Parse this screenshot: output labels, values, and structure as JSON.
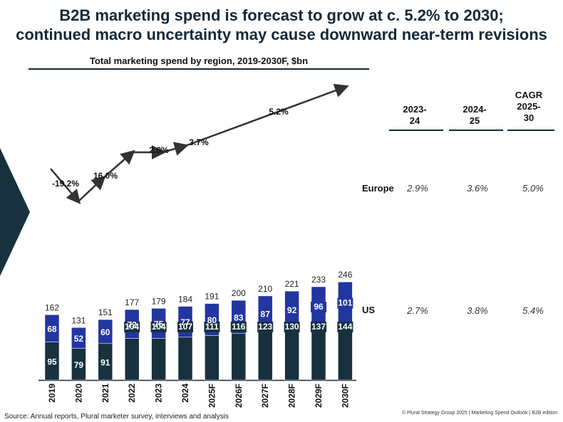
{
  "title_line1": "B2B marketing spend is forecast to grow at c. 5.2% to 2030;",
  "title_line2": "continued macro uncertainty may cause downward near-term revisions",
  "colors": {
    "us": "#17313f",
    "europe": "#2336a0",
    "arrow": "#333333",
    "rule": "#14283a"
  },
  "chart_data": {
    "type": "bar",
    "stacked": true,
    "title": "Total marketing spend by region, 2019-2030F, $bn",
    "categories": [
      "2019",
      "2020",
      "2021",
      "2022",
      "2023",
      "2024",
      "2025F",
      "2026F",
      "2027F",
      "2028F",
      "2029F",
      "2030F"
    ],
    "series": [
      {
        "name": "US",
        "values": [
          95,
          79,
          91,
          104,
          104,
          107,
          111,
          116,
          123,
          130,
          137,
          144
        ]
      },
      {
        "name": "Europe",
        "values": [
          68,
          52,
          60,
          72,
          75,
          77,
          80,
          83,
          87,
          92,
          96,
          101
        ]
      }
    ],
    "totals": [
      "162",
      "131",
      "151",
      "177",
      "179",
      "184",
      "191",
      "200",
      "210",
      "221",
      "233",
      "246"
    ],
    "growth_annotations": [
      "-19.2%",
      "16.0%",
      "2.0%",
      "3.7%",
      "5.2%"
    ]
  },
  "table": {
    "headers": [
      [
        "2023-",
        "24"
      ],
      [
        "2024-",
        "25"
      ],
      [
        "CAGR",
        "2025-",
        "30"
      ]
    ],
    "rows": [
      {
        "label": "Europe",
        "values": [
          "2.9%",
          "3.6%",
          "5.0%"
        ]
      },
      {
        "label": "US",
        "values": [
          "2.7%",
          "3.8%",
          "5.4%"
        ]
      }
    ]
  },
  "source": "Source: Annual reports, Plural marketer survey, interviews and analysis",
  "copyright": "© Plural Strategy Group 2025 | Marketing Spend Outlook | B2B edition"
}
